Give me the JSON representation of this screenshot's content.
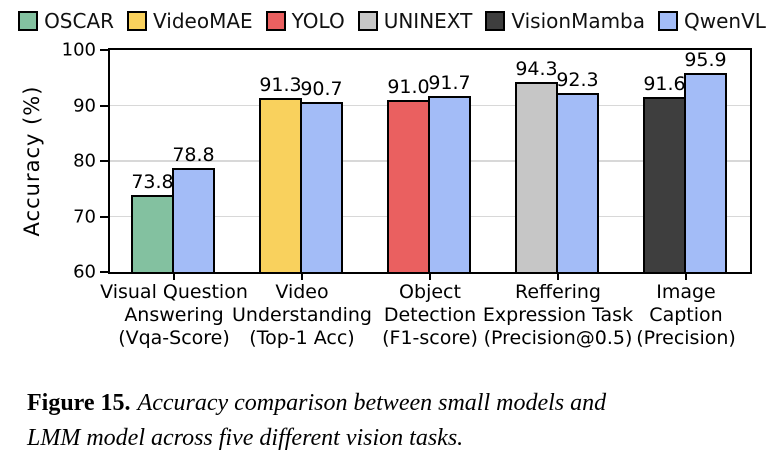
{
  "legend": {
    "items": [
      {
        "label": "OSCAR",
        "color": "#83c1a0"
      },
      {
        "label": "VideoMAE",
        "color": "#f9d15d"
      },
      {
        "label": "YOLO",
        "color": "#ea6060"
      },
      {
        "label": "UNINEXT",
        "color": "#c6c6c6"
      },
      {
        "label": "VisionMamba",
        "color": "#3e3e3e"
      },
      {
        "label": "QwenVL",
        "color": "#a3bcf7"
      }
    ]
  },
  "chart_data": {
    "type": "bar",
    "title": "",
    "xlabel": "",
    "ylabel": "Accuracy (%)",
    "ylim": [
      60,
      100
    ],
    "yticks": [
      60,
      70,
      80,
      90,
      100
    ],
    "grid": true,
    "legend_position": "top",
    "colors": {
      "OSCAR": "#83c1a0",
      "VideoMAE": "#f9d15d",
      "YOLO": "#ea6060",
      "UNINEXT": "#c6c6c6",
      "VisionMamba": "#3e3e3e",
      "QwenVL": "#a3bcf7"
    },
    "groups": [
      {
        "category": "Visual Question\nAnswering\n(Vqa-Score)",
        "bars": [
          {
            "model": "OSCAR",
            "value": 73.8
          },
          {
            "model": "QwenVL",
            "value": 78.8
          }
        ]
      },
      {
        "category": "Video\nUnderstanding\n(Top-1 Acc)",
        "bars": [
          {
            "model": "VideoMAE",
            "value": 91.3
          },
          {
            "model": "QwenVL",
            "value": 90.7
          }
        ]
      },
      {
        "category": "Object\nDetection\n(F1-score)",
        "bars": [
          {
            "model": "YOLO",
            "value": 91.0
          },
          {
            "model": "QwenVL",
            "value": 91.7
          }
        ]
      },
      {
        "category": "Reffering\nExpression Task\n(Precision@0.5)",
        "bars": [
          {
            "model": "UNINEXT",
            "value": 94.3
          },
          {
            "model": "QwenVL",
            "value": 92.3
          }
        ]
      },
      {
        "category": "Image\nCaption\n(Precision)",
        "bars": [
          {
            "model": "VisionMamba",
            "value": 91.6
          },
          {
            "model": "QwenVL",
            "value": 95.9
          }
        ]
      }
    ]
  },
  "caption": {
    "figure_label": "Figure 15.",
    "line1": "Accuracy comparison between small models and",
    "line2": "LMM model across five different vision tasks."
  }
}
